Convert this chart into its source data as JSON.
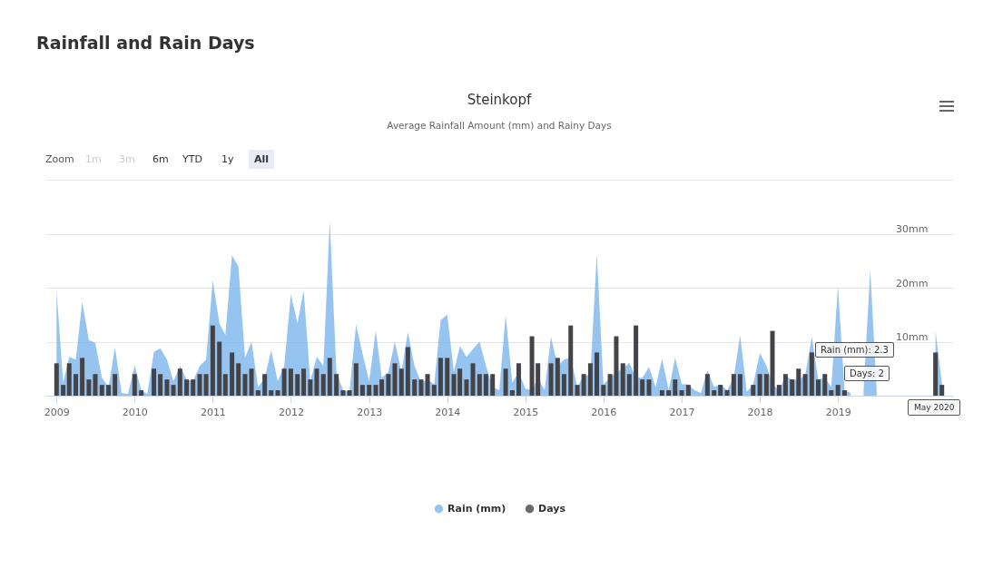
{
  "chart_data": {
    "type": "area",
    "title": "Steinkopf",
    "subtitle": "Average Rainfall Amount (mm) and Rainy Days",
    "annotations": [
      "Rainfall and Rain Days",
      "Zoom",
      "1m",
      "3m",
      "6m",
      "YTD",
      "1y",
      "All",
      "Rain (mm): 2.3",
      "Days: 2",
      "May 2020"
    ],
    "x": [
      "2009-01",
      "2009-02",
      "2009-03",
      "2009-04",
      "2009-05",
      "2009-06",
      "2009-07",
      "2009-08",
      "2009-09",
      "2009-10",
      "2009-11",
      "2009-12",
      "2010-01",
      "2010-02",
      "2010-03",
      "2010-04",
      "2010-05",
      "2010-06",
      "2010-07",
      "2010-08",
      "2010-09",
      "2010-10",
      "2010-11",
      "2010-12",
      "2011-01",
      "2011-02",
      "2011-03",
      "2011-04",
      "2011-05",
      "2011-06",
      "2011-07",
      "2011-08",
      "2011-09",
      "2011-10",
      "2011-11",
      "2011-12",
      "2012-01",
      "2012-02",
      "2012-03",
      "2012-04",
      "2012-05",
      "2012-06",
      "2012-07",
      "2012-08",
      "2012-09",
      "2012-10",
      "2012-11",
      "2012-12",
      "2013-01",
      "2013-02",
      "2013-03",
      "2013-04",
      "2013-05",
      "2013-06",
      "2013-07",
      "2013-08",
      "2013-09",
      "2013-10",
      "2013-11",
      "2013-12",
      "2014-01",
      "2014-02",
      "2014-03",
      "2014-04",
      "2014-05",
      "2014-06",
      "2014-07",
      "2014-08",
      "2014-09",
      "2014-10",
      "2014-11",
      "2014-12",
      "2015-01",
      "2015-02",
      "2015-03",
      "2015-04",
      "2015-05",
      "2015-06",
      "2015-07",
      "2015-08",
      "2015-09",
      "2015-10",
      "2015-11",
      "2015-12",
      "2016-01",
      "2016-02",
      "2016-03",
      "2016-04",
      "2016-05",
      "2016-06",
      "2016-07",
      "2016-08",
      "2016-09",
      "2016-10",
      "2016-11",
      "2016-12",
      "2017-01",
      "2017-02",
      "2017-03",
      "2017-04",
      "2017-05",
      "2017-06",
      "2017-07",
      "2017-08",
      "2017-09",
      "2017-10",
      "2017-11",
      "2017-12",
      "2018-01",
      "2018-02",
      "2018-03",
      "2018-04",
      "2018-05",
      "2018-06",
      "2018-07",
      "2018-08",
      "2018-09",
      "2018-10",
      "2018-11",
      "2018-12",
      "2019-01",
      "2019-02",
      "2019-03",
      "2019-04",
      "2019-05",
      "2019-06",
      "2019-07",
      "2019-08",
      "2019-09",
      "2019-10",
      "2019-11",
      "2019-12",
      "2020-01",
      "2020-02",
      "2020-03",
      "2020-04",
      "2020-05"
    ],
    "series": [
      {
        "name": "Rain (mm)",
        "color": "#7cb5ec",
        "values": [
          19.5,
          2.4,
          7.2,
          6.7,
          17.4,
          10.3,
          9.8,
          3.3,
          1.6,
          9,
          0.5,
          0.3,
          5.6,
          1,
          0.3,
          8.1,
          8.8,
          6.7,
          2.7,
          5.5,
          3,
          2.7,
          5.5,
          6.7,
          21.4,
          13.4,
          11.2,
          26,
          23.9,
          7,
          10,
          1.6,
          3.3,
          8.4,
          2.7,
          5.5,
          18.8,
          13.4,
          19.5,
          2.7,
          7.2,
          5.5,
          32.4,
          4.4,
          1,
          0.7,
          13.2,
          7.8,
          2.7,
          12,
          3.3,
          4.4,
          10,
          4.4,
          11.8,
          5.5,
          2.4,
          3,
          2.1,
          14,
          15,
          4.4,
          9.2,
          7.2,
          8.6,
          10,
          5.5,
          1.6,
          1,
          14.9,
          2.4,
          4.4,
          1.3,
          1,
          3.3,
          1,
          10.9,
          5.5,
          6.7,
          7,
          1.6,
          3.8,
          3.8,
          26.4,
          2.1,
          3.3,
          4.4,
          5,
          6.1,
          3.3,
          3.3,
          5.3,
          1.6,
          6.8,
          1,
          7,
          2.1,
          2.1,
          1,
          0.5,
          4.7,
          1.6,
          2.1,
          1,
          3.3,
          11.2,
          0.7,
          2.1,
          7.9,
          5.5,
          2.1,
          1,
          3.6,
          3,
          3,
          3.8,
          10.9,
          3,
          3.3,
          1.6,
          20.3,
          1,
          0.5,
          null,
          1,
          23.3,
          1,
          null,
          null,
          null,
          null,
          null,
          null,
          null,
          null,
          12,
          2.3
        ]
      },
      {
        "name": "Days",
        "type": "bar",
        "color": "#434348",
        "values": [
          6,
          2,
          6,
          4,
          7,
          3,
          4,
          2,
          2,
          4,
          0,
          0,
          4,
          1,
          0,
          5,
          4,
          3,
          2,
          5,
          3,
          3,
          4,
          4,
          13,
          10,
          4,
          8,
          6,
          4,
          5,
          1,
          4,
          1,
          1,
          5,
          5,
          4,
          5,
          3,
          5,
          4,
          7,
          4,
          1,
          1,
          6,
          2,
          2,
          2,
          3,
          4,
          6,
          5,
          9,
          3,
          3,
          4,
          2,
          7,
          7,
          4,
          5,
          3,
          6,
          4,
          4,
          4,
          0,
          5,
          1,
          6,
          0,
          11,
          6,
          0,
          6,
          7,
          4,
          13,
          2,
          4,
          6,
          8,
          2,
          4,
          11,
          6,
          4,
          13,
          3,
          3,
          0,
          1,
          1,
          3,
          1,
          2,
          0,
          0,
          4,
          1,
          2,
          1,
          4,
          4,
          0,
          2,
          4,
          4,
          12,
          2,
          4,
          3,
          5,
          4,
          8,
          3,
          4,
          1,
          2,
          1,
          0,
          null,
          null,
          null,
          null,
          null,
          null,
          null,
          null,
          null,
          null,
          null,
          null,
          8,
          2
        ]
      }
    ],
    "xlim": [
      "2008-12",
      "2020-06"
    ],
    "xticks": [
      "2009",
      "2010",
      "2011",
      "2012",
      "2013",
      "2014",
      "2015",
      "2016",
      "2017",
      "2018",
      "2019"
    ],
    "ylim": [
      0,
      40
    ],
    "yticks": [
      {
        "value": 10,
        "label": "10mm"
      },
      {
        "value": 20,
        "label": "20mm"
      },
      {
        "value": 30,
        "label": "30mm"
      },
      {
        "value": 40,
        "label": null
      }
    ],
    "grid": "y",
    "legend": "bottom"
  }
}
